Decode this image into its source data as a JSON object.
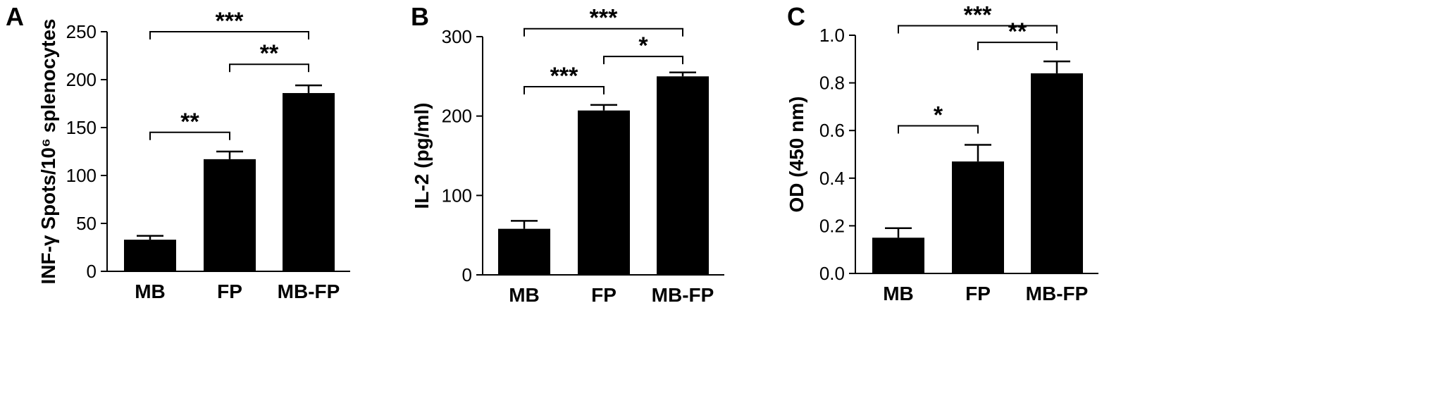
{
  "chart_data": [
    {
      "panel": "A",
      "type": "bar",
      "categories": [
        "MB",
        "FP",
        "MB-FP"
      ],
      "values": [
        33,
        117,
        186
      ],
      "errors": [
        4,
        8,
        8
      ],
      "ylabel": "INF-γ Spots/10⁶ splenocytes",
      "ylim": [
        0,
        250
      ],
      "yticks": [
        "0",
        "50",
        "100",
        "150",
        "200",
        "250"
      ],
      "bar_color": "#000000",
      "significance": [
        {
          "from": 0,
          "to": 2,
          "label": "***",
          "y": 250
        },
        {
          "from": 1,
          "to": 2,
          "label": "**",
          "y": 216
        },
        {
          "from": 0,
          "to": 1,
          "label": "**",
          "y": 145
        }
      ]
    },
    {
      "panel": "B",
      "type": "bar",
      "categories": [
        "MB",
        "FP",
        "MB-FP"
      ],
      "values": [
        58,
        207,
        250
      ],
      "errors": [
        10,
        7,
        5
      ],
      "ylabel": "IL-2 (pg/ml)",
      "ylim": [
        0,
        300
      ],
      "yticks": [
        "0",
        "100",
        "200",
        "300"
      ],
      "bar_color": "#000000",
      "significance": [
        {
          "from": 0,
          "to": 2,
          "label": "***",
          "y": 310
        },
        {
          "from": 1,
          "to": 2,
          "label": "*",
          "y": 275
        },
        {
          "from": 0,
          "to": 1,
          "label": "***",
          "y": 237
        }
      ]
    },
    {
      "panel": "C",
      "type": "bar",
      "categories": [
        "MB",
        "FP",
        "MB-FP"
      ],
      "values": [
        0.15,
        0.47,
        0.84
      ],
      "errors": [
        0.04,
        0.07,
        0.05
      ],
      "ylabel": "OD (450 nm)",
      "ylim": [
        0,
        1.0
      ],
      "yticks": [
        "0.0",
        "0.2",
        "0.4",
        "0.6",
        "0.8",
        "1.0"
      ],
      "bar_color": "#000000",
      "significance": [
        {
          "from": 0,
          "to": 2,
          "label": "***",
          "y": 1.04
        },
        {
          "from": 1,
          "to": 2,
          "label": "**",
          "y": 0.97
        },
        {
          "from": 0,
          "to": 1,
          "label": "*",
          "y": 0.62
        }
      ]
    }
  ]
}
